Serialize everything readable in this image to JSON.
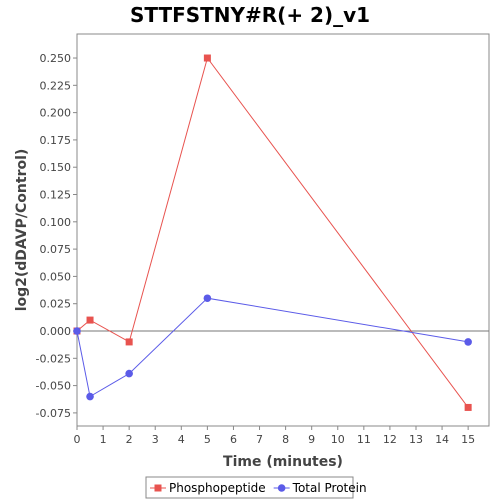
{
  "chart_data": {
    "type": "line",
    "title": "STTFSTNY#R(+ 2)_v1",
    "xlabel": "Time (minutes)",
    "ylabel": "log2(dDAVP/Control)",
    "xlim": [
      0,
      15.8
    ],
    "ylim": [
      -0.087,
      0.272
    ],
    "xticks": [
      0,
      1,
      2,
      3,
      4,
      5,
      6,
      7,
      8,
      9,
      10,
      11,
      12,
      13,
      14,
      15
    ],
    "yticks": [
      -0.075,
      -0.05,
      -0.025,
      0.0,
      0.025,
      0.05,
      0.075,
      0.1,
      0.125,
      0.15,
      0.175,
      0.2,
      0.225,
      0.25
    ],
    "ytick_labels": [
      "-0.075",
      "-0.050",
      "-0.025",
      "0.000",
      "0.025",
      "0.050",
      "0.075",
      "0.100",
      "0.125",
      "0.150",
      "0.175",
      "0.200",
      "0.225",
      "0.250"
    ],
    "zero_line": true,
    "grid": false,
    "legend_position": "bottom",
    "series": [
      {
        "name": "Phosphopeptide",
        "color": "#e8534f",
        "marker": "square",
        "x": [
          0,
          0.5,
          2,
          5,
          15
        ],
        "y": [
          0.0,
          0.01,
          -0.01,
          0.25,
          -0.07
        ]
      },
      {
        "name": "Total Protein",
        "color": "#5b5be8",
        "marker": "circle",
        "x": [
          0,
          0.5,
          2,
          5,
          15
        ],
        "y": [
          0.0,
          -0.06,
          -0.039,
          0.03,
          -0.01
        ]
      }
    ]
  }
}
